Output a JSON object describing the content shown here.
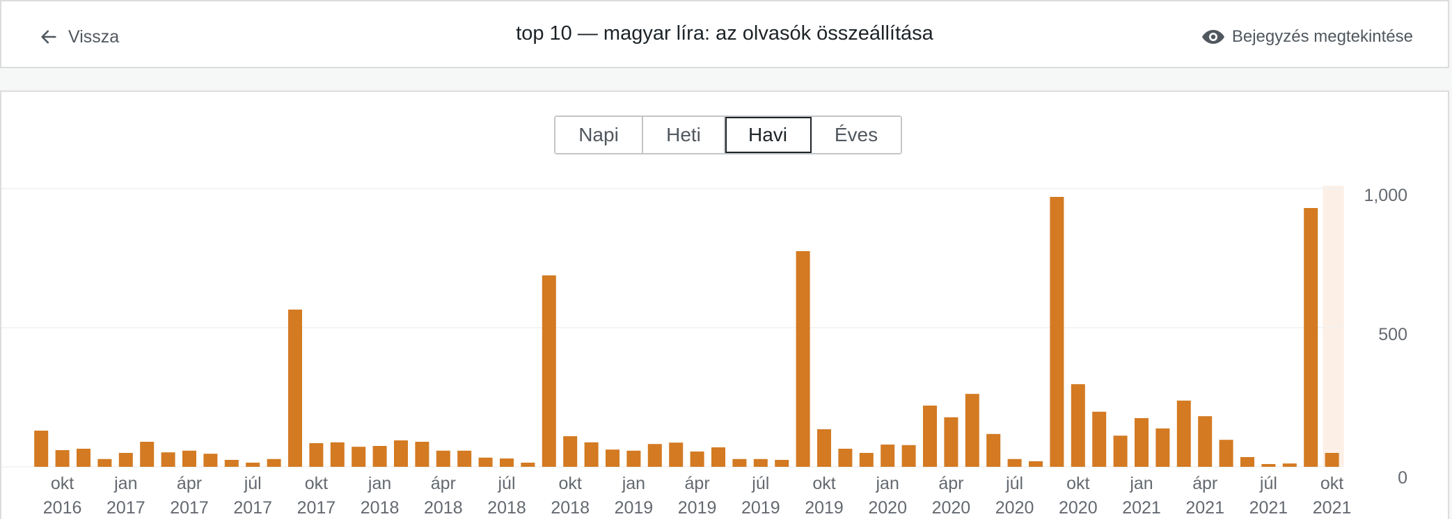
{
  "header": {
    "back_label": "Vissza",
    "title": "top 10 — magyar líra: az olvasók összeállítása",
    "view_post_label": "Bejegyzés megtekintése"
  },
  "periods": {
    "items": [
      "Napi",
      "Heti",
      "Havi",
      "Éves"
    ],
    "active": "Havi"
  },
  "colors": {
    "bar": "#d37a22",
    "highlight": "#fcf0e6",
    "grid": "#f0f0f1",
    "axis_text": "#646970"
  },
  "chart_data": {
    "type": "bar",
    "ylim": [
      0,
      1000
    ],
    "y_ticks": [
      "0",
      "500",
      "1,000"
    ],
    "y_tick_values": [
      0,
      500,
      1000
    ],
    "highlight_last": true,
    "x_tick_labels": [
      {
        "index": 1,
        "month": "okt",
        "year": "2016"
      },
      {
        "index": 4,
        "month": "jan",
        "year": "2017"
      },
      {
        "index": 7,
        "month": "ápr",
        "year": "2017"
      },
      {
        "index": 10,
        "month": "júl",
        "year": "2017"
      },
      {
        "index": 13,
        "month": "okt",
        "year": "2017"
      },
      {
        "index": 16,
        "month": "jan",
        "year": "2018"
      },
      {
        "index": 19,
        "month": "ápr",
        "year": "2018"
      },
      {
        "index": 22,
        "month": "júl",
        "year": "2018"
      },
      {
        "index": 25,
        "month": "okt",
        "year": "2018"
      },
      {
        "index": 28,
        "month": "jan",
        "year": "2019"
      },
      {
        "index": 31,
        "month": "ápr",
        "year": "2019"
      },
      {
        "index": 34,
        "month": "júl",
        "year": "2019"
      },
      {
        "index": 37,
        "month": "okt",
        "year": "2019"
      },
      {
        "index": 40,
        "month": "jan",
        "year": "2020"
      },
      {
        "index": 43,
        "month": "ápr",
        "year": "2020"
      },
      {
        "index": 46,
        "month": "júl",
        "year": "2020"
      },
      {
        "index": 49,
        "month": "okt",
        "year": "2020"
      },
      {
        "index": 52,
        "month": "jan",
        "year": "2021"
      },
      {
        "index": 55,
        "month": "ápr",
        "year": "2021"
      },
      {
        "index": 58,
        "month": "júl",
        "year": "2021"
      },
      {
        "index": 61,
        "month": "okt",
        "year": "2021"
      }
    ],
    "values": [
      130,
      60,
      65,
      28,
      50,
      90,
      52,
      58,
      47,
      25,
      15,
      28,
      565,
      85,
      88,
      72,
      75,
      95,
      90,
      58,
      58,
      33,
      30,
      15,
      688,
      110,
      88,
      62,
      58,
      82,
      87,
      55,
      70,
      28,
      28,
      25,
      775,
      135,
      65,
      50,
      80,
      78,
      220,
      178,
      262,
      118,
      28,
      20,
      970,
      297,
      198,
      112,
      175,
      138,
      238,
      182,
      97,
      35,
      10,
      12,
      930,
      50
    ]
  }
}
